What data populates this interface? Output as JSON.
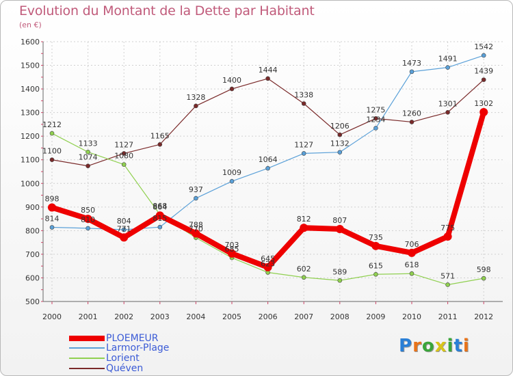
{
  "title": "Evolution du Montant de la Dette par Habitant",
  "subtitle": "(en €)",
  "logo": {
    "text": "Proxiti",
    "letters": [
      "P",
      "r",
      "o",
      "x",
      "i",
      "t",
      "i"
    ],
    "colors": [
      "#2a7fd6",
      "#e8731a",
      "#3aa53a",
      "#d8c41a",
      "#3aa53a",
      "#2a7fd6",
      "#e8731a"
    ]
  },
  "chart_data": {
    "type": "line",
    "title": "Evolution du Montant de la Dette par Habitant",
    "subtitle": "(en €)",
    "x": [
      "2000",
      "2001",
      "2002",
      "2003",
      "2004",
      "2005",
      "2006",
      "2007",
      "2008",
      "2009",
      "2010",
      "2011",
      "2012"
    ],
    "ylim": [
      500,
      1600
    ],
    "yticks": [
      "500",
      "600",
      "700",
      "800",
      "900",
      "1000",
      "1100",
      "1200",
      "1300",
      "1400",
      "1500",
      "1600"
    ],
    "grid": true,
    "legend_position": "bottom-left",
    "series": [
      {
        "name": "PLOEMEUR",
        "color": "#ee0000",
        "values": [
          898,
          850,
          771,
          864,
          788,
          703,
          645,
          812,
          807,
          735,
          706,
          775,
          1302
        ],
        "labels": [
          "898",
          "850",
          "771",
          "864",
          "788",
          "703",
          "645",
          "812",
          "807",
          "735",
          "706",
          "775",
          "1302"
        ]
      },
      {
        "name": "Larmor-Plage",
        "color": "#5aa0d8",
        "values": [
          814,
          810,
          804,
          815,
          937,
          1009,
          1064,
          1127,
          1132,
          1234,
          1473,
          1491,
          1542
        ],
        "labels": [
          "814",
          "810",
          "804",
          "815",
          "937",
          "1009",
          "1064",
          "1127",
          "1132",
          "1234",
          "1473",
          "1491",
          "1542"
        ]
      },
      {
        "name": "Lorient",
        "color": "#90d050",
        "values": [
          1212,
          1133,
          1080,
          868,
          770,
          685,
          623,
          602,
          589,
          615,
          618,
          571,
          598
        ],
        "labels": [
          "1212",
          "1133",
          "1080",
          "868",
          "770",
          "685",
          "623",
          "602",
          "589",
          "615",
          "618",
          "571",
          "598"
        ]
      },
      {
        "name": "Quéven",
        "color": "#7a2a2a",
        "values": [
          1100,
          1074,
          1127,
          1165,
          1328,
          1400,
          1444,
          1338,
          1206,
          1275,
          1260,
          1301,
          1439
        ],
        "labels": [
          "1100",
          "1074",
          "1127",
          "1165",
          "1328",
          "1400",
          "1444",
          "1338",
          "1206",
          "1275",
          "1260",
          "1301",
          "1439"
        ]
      }
    ]
  }
}
